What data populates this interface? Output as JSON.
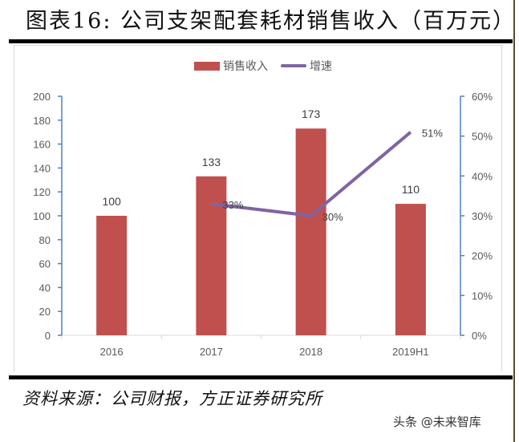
{
  "header": {
    "title": "图表16:  公司支架配套耗材销售收入（百万元）"
  },
  "legend": {
    "bar_label": "销售收入",
    "line_label": "增速"
  },
  "footer": {
    "source": "资料来源：公司财报，方正证券研究所",
    "watermark": "头条 @未来智库"
  },
  "colors": {
    "bar": "#c0504d",
    "line": "#8064a2",
    "axis": "#4f81bd",
    "tick_text": "#595959"
  },
  "chart_data": {
    "type": "bar",
    "title": "公司支架配套耗材销售收入（百万元）",
    "categories": [
      "2016",
      "2017",
      "2018",
      "2019H1"
    ],
    "series": [
      {
        "name": "销售收入",
        "type": "bar",
        "axis": "left",
        "values": [
          100,
          133,
          173,
          110
        ],
        "labels": [
          "100",
          "133",
          "173",
          "110"
        ]
      },
      {
        "name": "增速",
        "type": "line",
        "axis": "right",
        "values": [
          null,
          0.33,
          0.3,
          0.51
        ],
        "labels": [
          "",
          "33%",
          "30%",
          "51%"
        ]
      }
    ],
    "xlabel": "",
    "ylabel": "",
    "ylim": [
      0,
      200
    ],
    "y_ticks": [
      "0",
      "20",
      "40",
      "60",
      "80",
      "100",
      "120",
      "140",
      "160",
      "180",
      "200"
    ],
    "y2lim": [
      0,
      0.6
    ],
    "y2_ticks": [
      "0%",
      "10%",
      "20%",
      "30%",
      "40%",
      "50%",
      "60%"
    ],
    "grid": false,
    "legend_position": "top"
  }
}
